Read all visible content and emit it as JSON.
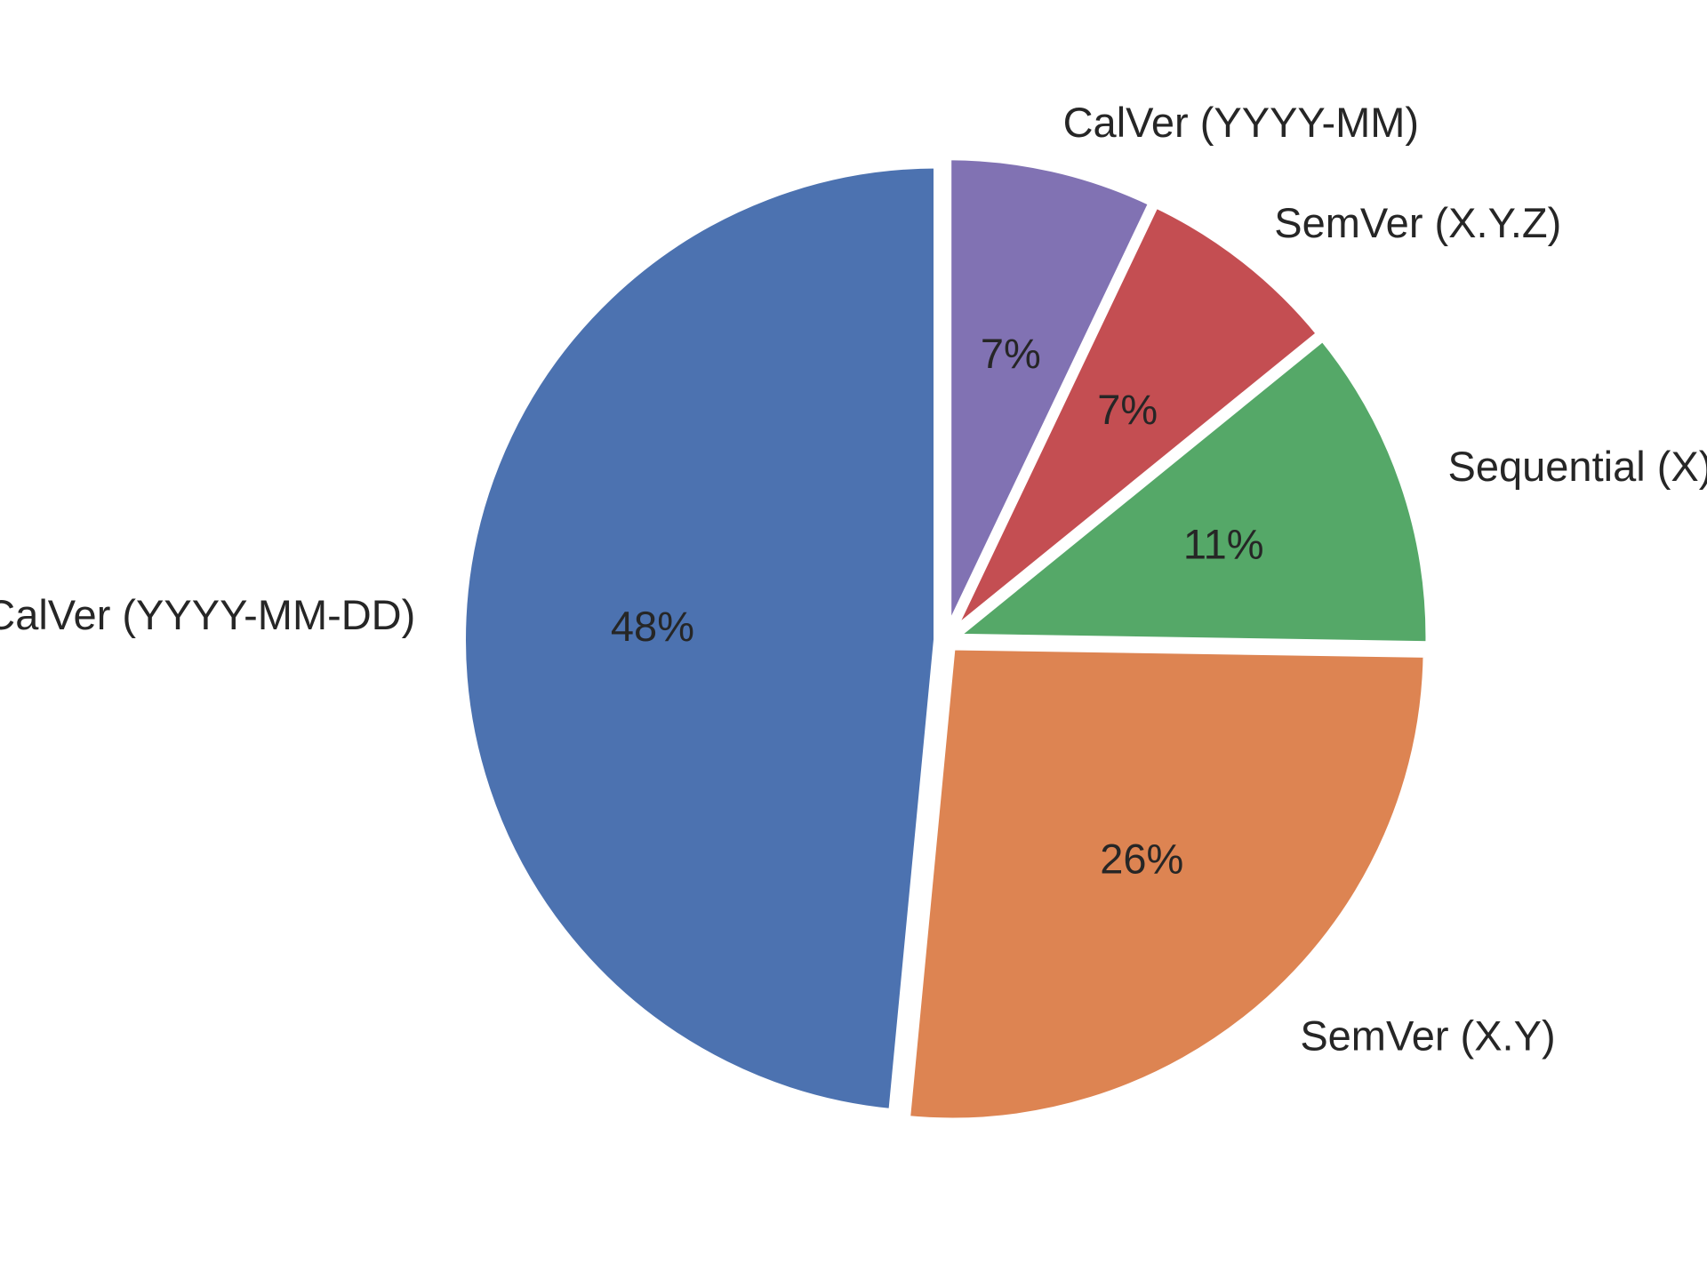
{
  "chart_data": {
    "type": "pie",
    "title": "",
    "start_angle_deg": 90,
    "direction": "counterclockwise",
    "slices": [
      {
        "label": "CalVer (YYYY-MM-DD)",
        "value": 48,
        "pct_label": "48%",
        "color": "#4c72b0"
      },
      {
        "label": "SemVer (X.Y)",
        "value": 26,
        "pct_label": "26%",
        "color": "#dd8452"
      },
      {
        "label": "Sequential (X)",
        "value": 11,
        "pct_label": "11%",
        "color": "#55a868"
      },
      {
        "label": "SemVer (X.Y.Z)",
        "value": 7,
        "pct_label": "7%",
        "color": "#c44e52"
      },
      {
        "label": "CalVer (YYYY-MM)",
        "value": 7,
        "pct_label": "7%",
        "color": "#8172b3"
      }
    ]
  }
}
